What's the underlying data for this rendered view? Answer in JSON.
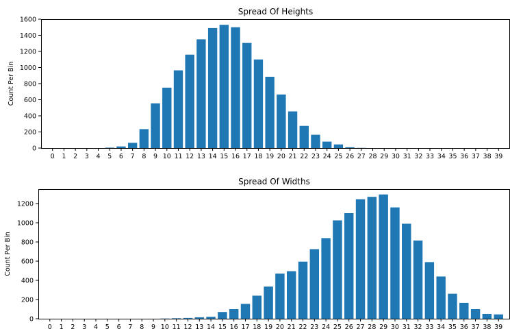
{
  "chart_data": [
    {
      "type": "bar",
      "title": "Spread Of Heights",
      "xlabel": "",
      "ylabel": "Count Per Bin",
      "categories": [
        "0",
        "1",
        "2",
        "3",
        "4",
        "5",
        "6",
        "7",
        "8",
        "9",
        "10",
        "11",
        "12",
        "13",
        "14",
        "15",
        "16",
        "17",
        "18",
        "19",
        "20",
        "21",
        "22",
        "23",
        "24",
        "25",
        "26",
        "27",
        "28",
        "29",
        "30",
        "31",
        "32",
        "33",
        "34",
        "35",
        "36",
        "37",
        "38",
        "39"
      ],
      "values": [
        0,
        0,
        0,
        0,
        0,
        5,
        20,
        65,
        235,
        555,
        750,
        965,
        1160,
        1350,
        1490,
        1530,
        1500,
        1305,
        1100,
        885,
        665,
        455,
        275,
        165,
        80,
        45,
        10,
        2,
        0,
        0,
        0,
        0,
        0,
        0,
        0,
        0,
        0,
        0,
        0,
        0
      ],
      "ylim": [
        0,
        1600
      ],
      "yticks": [
        0,
        200,
        400,
        600,
        800,
        1000,
        1200,
        1400,
        1600
      ],
      "color": "#1f77b4",
      "grid": false
    },
    {
      "type": "bar",
      "title": "Spread Of Widths",
      "xlabel": "",
      "ylabel": "Count Per Bin",
      "categories": [
        "0",
        "1",
        "2",
        "3",
        "4",
        "5",
        "6",
        "7",
        "8",
        "9",
        "10",
        "11",
        "12",
        "13",
        "14",
        "15",
        "16",
        "17",
        "18",
        "19",
        "20",
        "21",
        "22",
        "23",
        "24",
        "25",
        "26",
        "27",
        "28",
        "29",
        "30",
        "31",
        "32",
        "33",
        "34",
        "35",
        "36",
        "37",
        "38",
        "39"
      ],
      "values": [
        0,
        0,
        0,
        0,
        0,
        0,
        0,
        0,
        0,
        0,
        2,
        5,
        8,
        15,
        20,
        70,
        100,
        155,
        240,
        335,
        470,
        495,
        595,
        725,
        840,
        1025,
        1100,
        1245,
        1270,
        1295,
        1160,
        990,
        815,
        590,
        440,
        260,
        165,
        100,
        50,
        45
      ],
      "ylim": [
        0,
        1350
      ],
      "yticks": [
        0,
        200,
        400,
        600,
        800,
        1000,
        1200
      ],
      "color": "#1f77b4",
      "grid": false
    }
  ]
}
